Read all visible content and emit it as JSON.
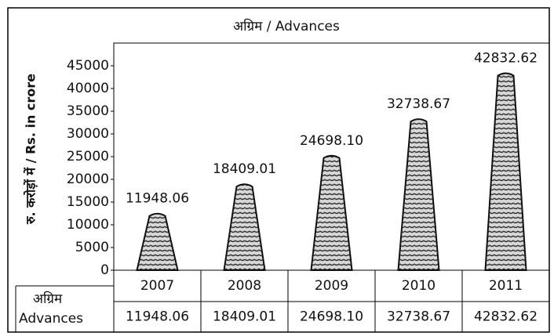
{
  "chart_data": {
    "type": "bar",
    "title": "अग्रिम / Advances",
    "y_label": "रु. करोड़ों में / Rs. in crore",
    "categories": [
      "2007",
      "2008",
      "2009",
      "2010",
      "2011"
    ],
    "values": [
      11948.06,
      18409.01,
      24698.1,
      32738.67,
      42832.62
    ],
    "value_labels": [
      "11948.06",
      "18409.01",
      "24698.10",
      "32738.67",
      "42832.62"
    ],
    "table_row_label": [
      "अग्रिम",
      "Advances"
    ],
    "color": "#888888",
    "ylim": [
      0,
      50000
    ],
    "yticks": [
      0,
      5000,
      10000,
      15000,
      20000,
      25000,
      30000,
      35000,
      40000,
      45000
    ]
  }
}
